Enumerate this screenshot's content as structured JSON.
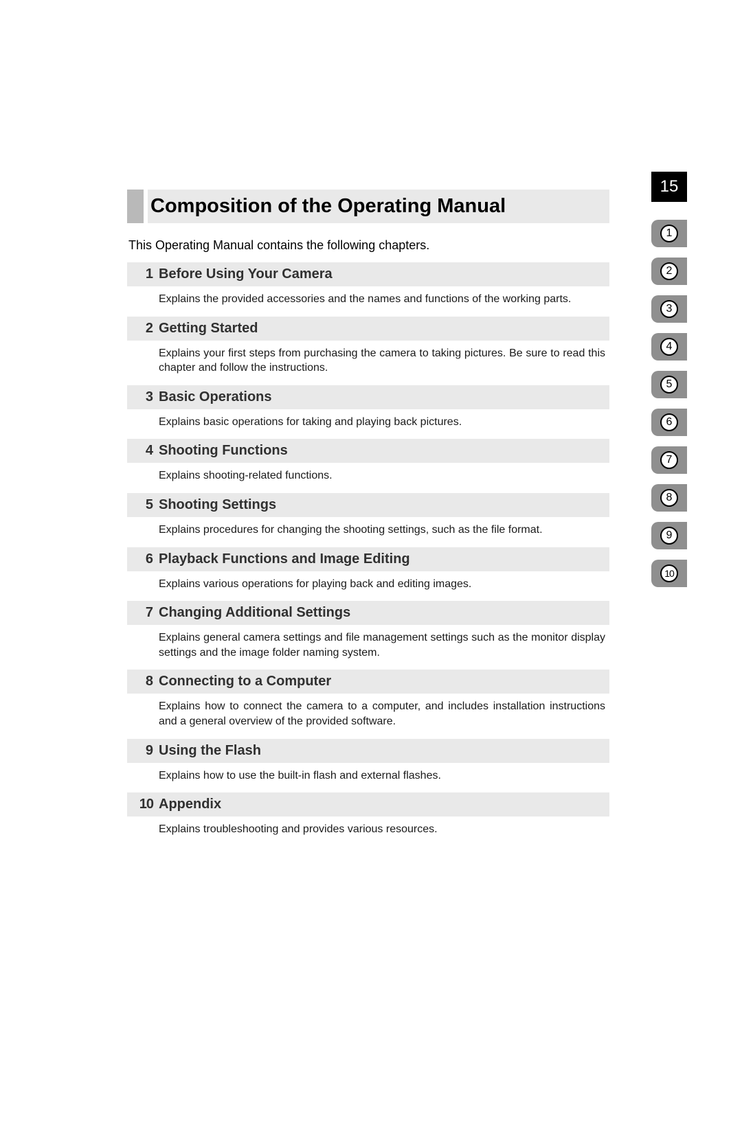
{
  "page_number": "15",
  "title": "Composition of the Operating Manual",
  "intro": "This Operating Manual contains the following chapters.",
  "colors": {
    "page_bg": "#ffffff",
    "text": "#000000",
    "light_bar": "#e9e9e9",
    "title_marker": "#b9b9b9",
    "tab_bg": "#8f8f8f",
    "pagenum_bg": "#000000",
    "pagenum_fg": "#ffffff",
    "circle_bg": "#ffffff",
    "circle_border": "#000000"
  },
  "tabs": [
    "1",
    "2",
    "3",
    "4",
    "5",
    "6",
    "7",
    "8",
    "9",
    "10"
  ],
  "chapters": [
    {
      "num": "1",
      "title": "Before Using Your Camera",
      "desc": "Explains the provided accessories and the names and functions of the working parts."
    },
    {
      "num": "2",
      "title": "Getting Started",
      "desc": "Explains your first steps from purchasing the camera to taking pictures. Be sure to read this chapter and follow the instructions."
    },
    {
      "num": "3",
      "title": "Basic Operations",
      "desc": "Explains basic operations for taking and playing back pictures."
    },
    {
      "num": "4",
      "title": "Shooting Functions",
      "desc": "Explains shooting-related functions."
    },
    {
      "num": "5",
      "title": "Shooting Settings",
      "desc": "Explains procedures for changing the shooting settings, such as the file format."
    },
    {
      "num": "6",
      "title": "Playback Functions and Image Editing",
      "desc": "Explains various operations for playing back and editing images."
    },
    {
      "num": "7",
      "title": "Changing Additional Settings",
      "desc": "Explains general camera settings and file management settings such as the monitor display settings and the image folder naming system."
    },
    {
      "num": "8",
      "title": "Connecting to a Computer",
      "desc": "Explains how to connect the camera to a computer, and includes installation instructions and a general overview of the provided software."
    },
    {
      "num": "9",
      "title": "Using the Flash",
      "desc": "Explains how to use the built-in flash and external flashes."
    },
    {
      "num": "10",
      "title": "Appendix",
      "desc": "Explains troubleshooting and provides various resources."
    }
  ]
}
